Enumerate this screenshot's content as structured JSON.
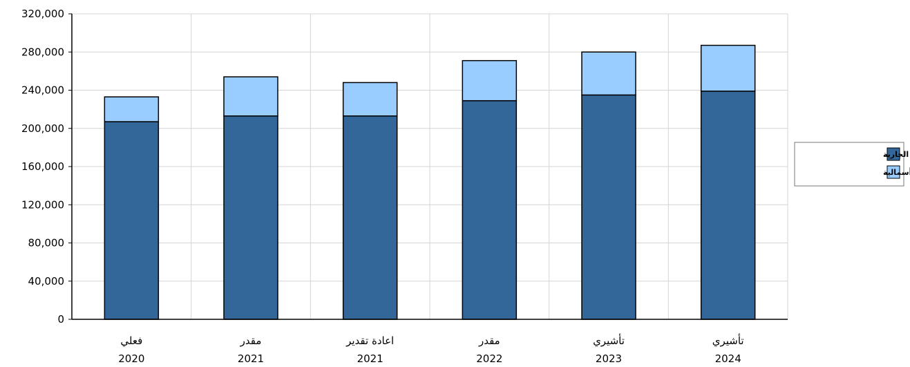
{
  "chart_data": {
    "type": "bar",
    "stacked": true,
    "categories": [
      [
        "فعلي",
        "2020"
      ],
      [
        "مقدر",
        "2021"
      ],
      [
        "اعادة تقدير",
        "2021"
      ],
      [
        "مقدر",
        "2022"
      ],
      [
        "تأشيري",
        "2023"
      ],
      [
        "تأشيري",
        "2024"
      ]
    ],
    "series": [
      {
        "name": "النفقات الجارية",
        "color": "#336699",
        "values": [
          207000,
          213000,
          213000,
          229000,
          235000,
          239000
        ]
      },
      {
        "name": "النفقات الرأسمالية",
        "color": "#99ccff",
        "values": [
          26000,
          41000,
          35000,
          42000,
          45000,
          48000
        ]
      }
    ],
    "ylim": [
      0,
      320000
    ],
    "yticks": [
      "0",
      "40,000",
      "80,000",
      "120,000",
      "160,000",
      "200,000",
      "240,000",
      "280,000",
      "320,000"
    ],
    "grid": true,
    "legend": "right"
  }
}
